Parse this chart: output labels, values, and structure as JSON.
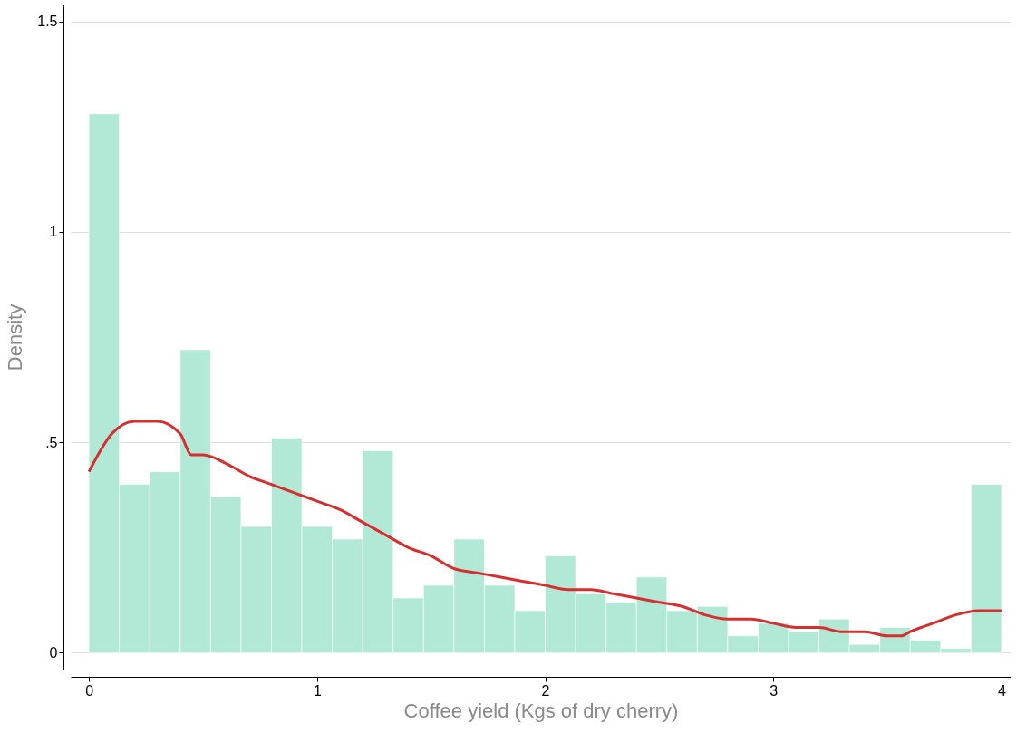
{
  "chart_data": {
    "type": "histogram",
    "xlabel": "Coffee yield (Kgs of dry cherry)",
    "ylabel": "Density",
    "color": "#b2e8d6",
    "bins": [
      0,
      0.1333,
      0.2667,
      0.4,
      0.5333,
      0.6667,
      0.8,
      0.9333,
      1.0667,
      1.2,
      1.3333,
      1.4667,
      1.6,
      1.7333,
      1.8667,
      2,
      2.1333,
      2.2667,
      2.4,
      2.5333,
      2.6667,
      2.8,
      2.9333,
      3.0667,
      3.2,
      3.3333,
      3.4667,
      3.6,
      3.7333,
      3.8667,
      4
    ],
    "values": [
      1.28,
      0.4,
      0.43,
      0.72,
      0.37,
      0.3,
      0.51,
      0.3,
      0.27,
      0.48,
      0.13,
      0.16,
      0.27,
      0.16,
      0.1,
      0.23,
      0.14,
      0.12,
      0.18,
      0.1,
      0.11,
      0.04,
      0.07,
      0.05,
      0.08,
      0.02,
      0.06,
      0.03,
      0.01,
      0.4
    ],
    "series": [
      {
        "type": "line",
        "color": "#d62f2f",
        "x": [
          0,
          0.05,
          0.1,
          0.2,
          0.3,
          0.4,
          0.45,
          0.5,
          0.6,
          0.7,
          0.8,
          0.9,
          1.0,
          1.1,
          1.2,
          1.3,
          1.4,
          1.5,
          1.6,
          1.7,
          1.8,
          1.9,
          2.0,
          2.1,
          2.2,
          2.3,
          2.4,
          2.5,
          2.6,
          2.7,
          2.8,
          2.9,
          3.0,
          3.1,
          3.2,
          3.3,
          3.4,
          3.5,
          3.56,
          3.6,
          3.7,
          3.8,
          3.9,
          4.0
        ],
        "values": [
          0.43,
          0.48,
          0.52,
          0.55,
          0.55,
          0.52,
          0.47,
          0.47,
          0.45,
          0.42,
          0.4,
          0.38,
          0.36,
          0.34,
          0.31,
          0.28,
          0.25,
          0.23,
          0.2,
          0.19,
          0.18,
          0.17,
          0.16,
          0.15,
          0.15,
          0.14,
          0.13,
          0.12,
          0.11,
          0.09,
          0.08,
          0.08,
          0.07,
          0.06,
          0.06,
          0.05,
          0.05,
          0.04,
          0.04,
          0.05,
          0.07,
          0.09,
          0.1,
          0.1
        ]
      }
    ],
    "xlim": [
      -0.08,
      4.04
    ],
    "ylim": [
      -0.04,
      1.54
    ],
    "xticks": [
      0,
      1,
      2,
      3,
      4
    ],
    "yticks": [
      0,
      {
        "value": 0.5,
        "label": ".5"
      },
      1,
      1.5
    ],
    "grid": "y"
  }
}
